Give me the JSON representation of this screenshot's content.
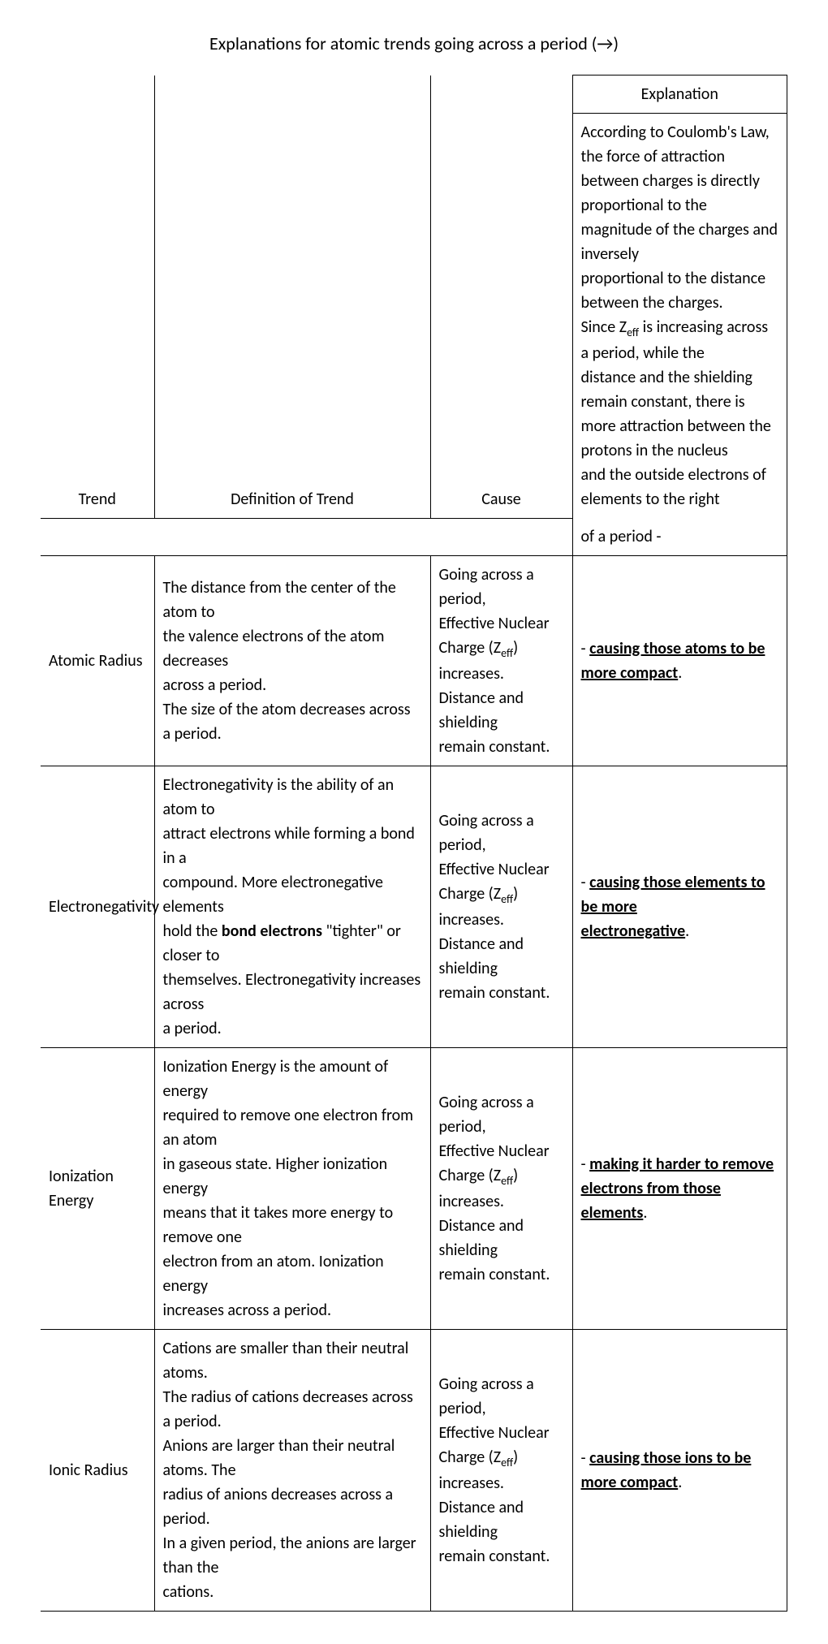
{
  "title_prefix": "Explanations for atomic trends going across a period (",
  "arrow": "→",
  "title_suffix": ")",
  "headers": {
    "trend": "Trend",
    "definition": "Definition of Trend",
    "cause": "Cause",
    "explanation": "Explanation",
    "of_period": "of a period -"
  },
  "explanation_top": {
    "l1": "According to Coulomb's Law, the force of attraction",
    "l2": "between charges is directly proportional to the",
    "l3": "magnitude of the charges and inversely",
    "l4": "proportional to the distance between the charges.",
    "l5a": "Since Z",
    "l5b": "eff",
    "l5c": " is increasing across a period, while the",
    "l6": "distance and the shielding remain constant, there is",
    "l7": "more attraction between the protons in the nucleus",
    "l8": "and the outside electrons of elements to the right"
  },
  "cause_common": {
    "l1": "Going across a period,",
    "l2": "Effective Nuclear",
    "l3a": "Charge (Z",
    "l3b": "eff",
    "l3c": ") increases.",
    "l4": "Distance and shielding",
    "l5": "remain constant."
  },
  "rows": [
    {
      "trend": "Atomic Radius",
      "def": {
        "l1": "The distance from the center of the atom to",
        "l2": "the valence electrons of the atom decreases",
        "l3": "across a period.",
        "l4": "The size of the atom decreases across a period."
      },
      "expl_prefix": "- ",
      "expl_u": "causing those atoms to be more compact",
      "expl_suffix": "."
    },
    {
      "trend": "Electronegativity",
      "def": {
        "l1": "Electronegativity is the ability of an atom to",
        "l2": "attract electrons while forming a bond in a",
        "l3": "compound. More electronegative elements",
        "l4a": "hold the ",
        "l4b": "bond electrons",
        "l4c": " \"tighter\" or closer to",
        "l5": "themselves. Electronegativity increases across",
        "l6": "a period."
      },
      "expl_prefix": "- ",
      "expl_u1": "causing those elements to be more",
      "expl_u2": "electronegative",
      "expl_suffix": "."
    },
    {
      "trend_l1": "Ionization",
      "trend_l2": "Energy",
      "def": {
        "l1": "Ionization Energy is the amount of energy",
        "l2": "required to remove one electron from an atom",
        "l3": "in gaseous state. Higher ionization energy",
        "l4": "means that it takes more energy to remove one",
        "l5": "electron from an atom. Ionization energy",
        "l6": "increases across a period."
      },
      "expl_prefix": "- ",
      "expl_u1": "making it harder to remove electrons from those",
      "expl_u2": "elements",
      "expl_suffix": "."
    },
    {
      "trend": "Ionic Radius",
      "def": {
        "l1": "Cations are smaller than their neutral atoms.",
        "l2": "The radius of cations decreases across a period.",
        "l3": "Anions are larger than their neutral atoms. The",
        "l4": "radius of anions decreases across a period.",
        "l5": "In a given period, the anions are larger than the",
        "l6": "cations."
      },
      "expl_prefix": "- ",
      "expl_u": "causing those ions to be more compact",
      "expl_suffix": "."
    }
  ]
}
